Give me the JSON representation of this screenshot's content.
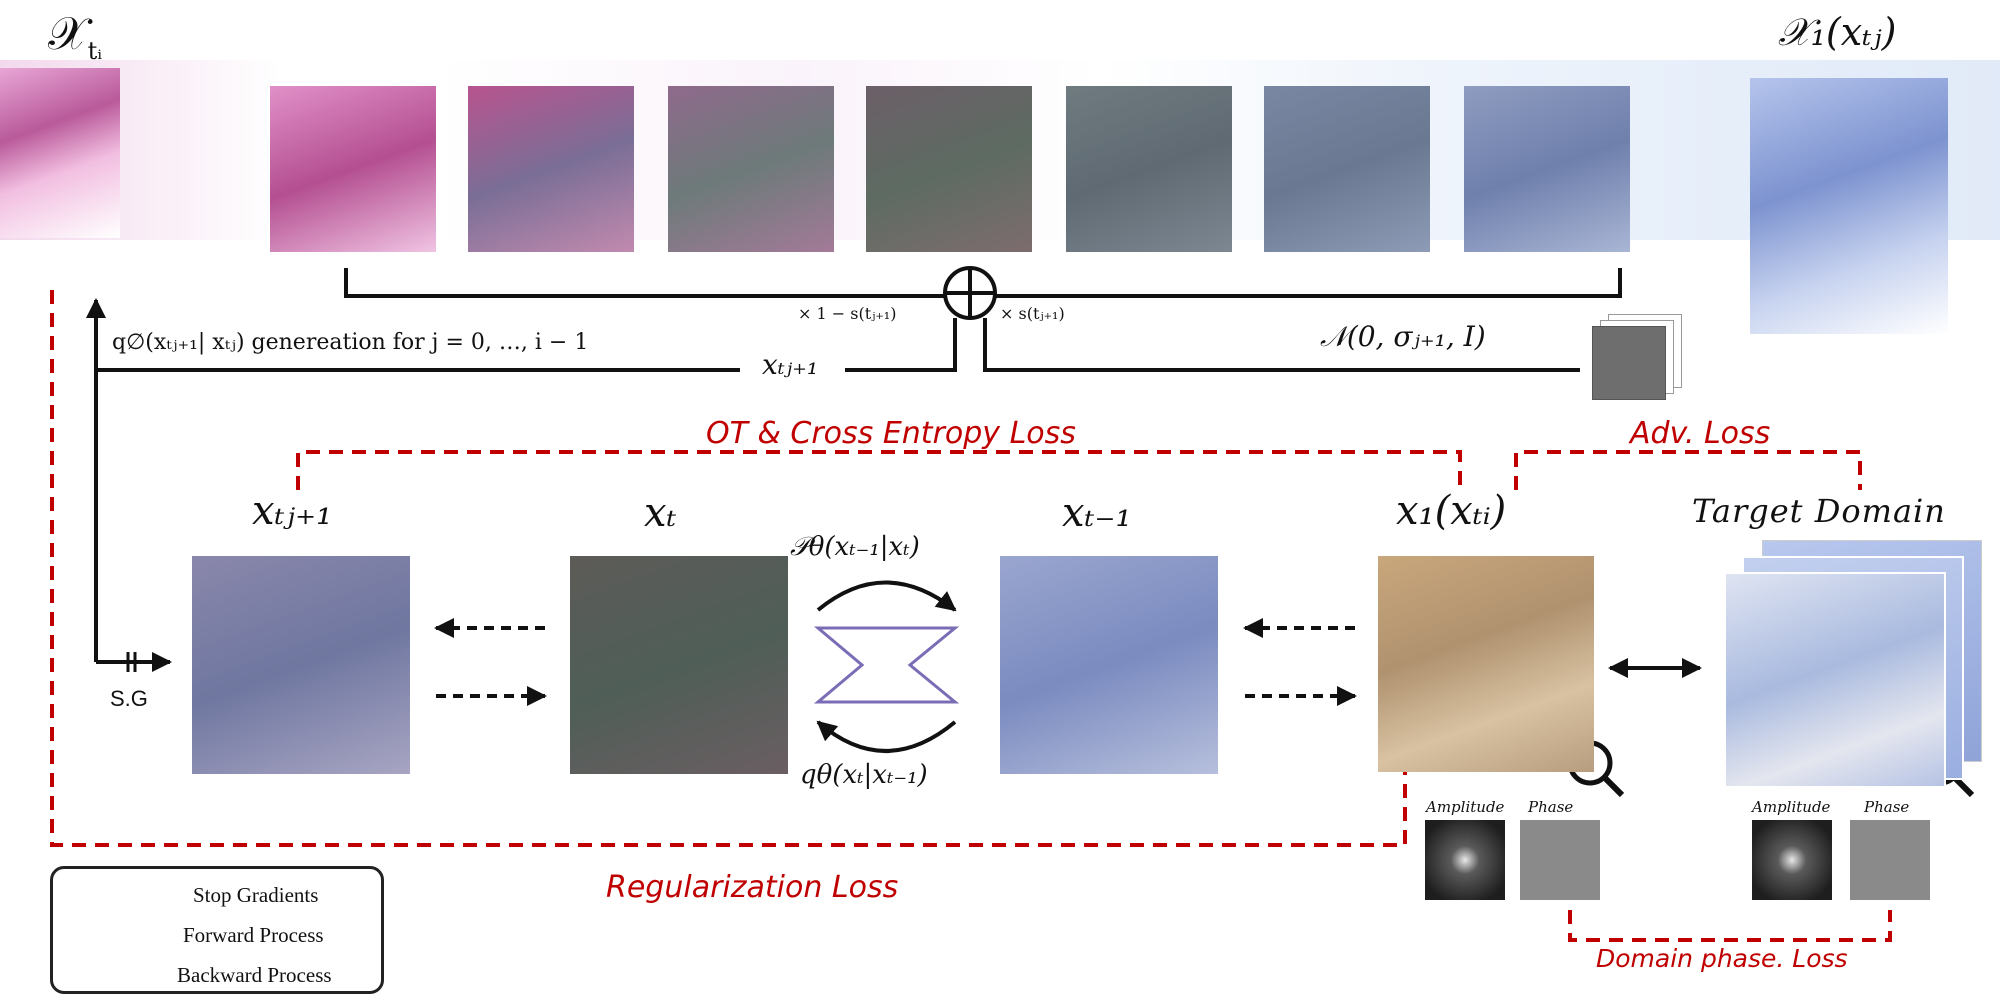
{
  "labels": {
    "x_ti": "𝒳",
    "x_ti_sub": "tᵢ",
    "x1_top": "𝒳₁(xₜⱼ)",
    "q_generation": "q∅(xₜⱼ₊₁| xₜⱼ) genereation for j = 0, …, i − 1",
    "x_tj1_arrow": "xₜⱼ₊₁",
    "scale_left": "× 1 − s(tⱼ₊₁)",
    "scale_right": "× s(tⱼ₊₁)",
    "gaussian": "𝒩(0, σⱼ₊₁, I)",
    "x_tj1_node": "xₜⱼ₊₁",
    "x_t_node": "xₜ",
    "x_t1_node": "xₜ₋₁",
    "x1_node": "x₁(xₜᵢ)",
    "target_domain": "Target Domain",
    "p_theta": "𝒫θ(xₜ₋₁|xₜ)",
    "q_theta": "qθ(xₜ|xₜ₋₁)",
    "sg": "S.G",
    "amplitude_1": "Amplitude",
    "phase_1": "Phase",
    "amplitude_2": "Amplitude",
    "phase_2": "Phase"
  },
  "losses": {
    "ot": "OT & Cross Entropy Loss",
    "adv": "Adv. Loss",
    "reg": "Regularization Loss",
    "phase": "Domain phase. Loss"
  },
  "legend": {
    "stop": "Stop Gradients",
    "forward": "Forward Process",
    "backward": "Backward Process"
  },
  "colors": {
    "loss_red": "#c00000",
    "he_pink": "#c96aa6",
    "ihc_blue": "#8ea2d6"
  }
}
